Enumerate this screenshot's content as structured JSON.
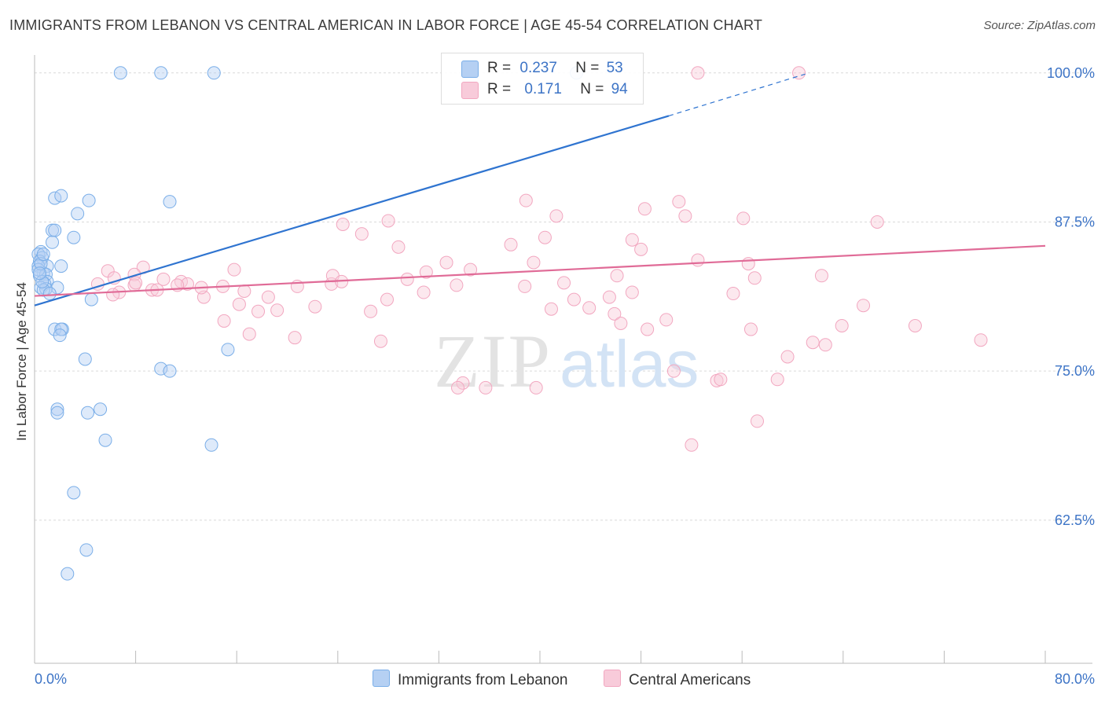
{
  "title": "IMMIGRANTS FROM LEBANON VS CENTRAL AMERICAN IN LABOR FORCE | AGE 45-54 CORRELATION CHART",
  "source": "Source: ZipAtlas.com",
  "watermark": {
    "zip": "ZIP",
    "atlas": "atlas"
  },
  "legend": {
    "series1": {
      "r_label": "R =",
      "r_value": "0.237",
      "n_label": "N =",
      "n_value": "53"
    },
    "series2": {
      "r_label": "R =",
      "r_value": "0.171",
      "n_label": "N =",
      "n_value": "94"
    }
  },
  "chart_data": {
    "type": "scatter",
    "title": "IMMIGRANTS FROM LEBANON VS CENTRAL AMERICAN IN LABOR FORCE | AGE 45-54 CORRELATION CHART",
    "xlabel": "",
    "ylabel": "In Labor Force | Age 45-54",
    "xlim": [
      0,
      80
    ],
    "ylim": [
      50.5,
      101.5
    ],
    "x_tick_labels": [
      "0.0%",
      "80.0%"
    ],
    "y_ticks": [
      62.5,
      75.0,
      87.5,
      100.0
    ],
    "y_tick_labels": [
      "62.5%",
      "75.0%",
      "87.5%",
      "100.0%"
    ],
    "grid": true,
    "legend_position": "top-center",
    "colors": {
      "blue": "#7aaee8",
      "blue_line": "#2f74d0",
      "pink": "#f2a7c0",
      "pink_line": "#e06b97",
      "tick_text": "#3d74c6"
    },
    "series": [
      {
        "name": "Immigrants from Lebanon",
        "color": "#7aaee8",
        "x": [
          6.8,
          10.0,
          14.2,
          42.9,
          1.6,
          2.1,
          4.3,
          10.7,
          3.4,
          1.4,
          1.6,
          3.1,
          1.4,
          0.5,
          0.3,
          0.6,
          0.4,
          2.1,
          1.0,
          0.3,
          0.7,
          0.4,
          0.9,
          1.0,
          0.8,
          0.5,
          1.8,
          0.9,
          0.7,
          4.5,
          1.6,
          2.2,
          2.1,
          2.0,
          4.0,
          15.3,
          10.0,
          10.7,
          1.8,
          1.8,
          4.2,
          5.2,
          5.6,
          14.0,
          3.1,
          4.1,
          2.6,
          0.6,
          0.3,
          0.5,
          1.2,
          0.7,
          0.4
        ],
        "y": [
          100.0,
          100.0,
          100.0,
          100.0,
          89.5,
          89.7,
          89.3,
          89.2,
          88.2,
          86.8,
          86.8,
          86.2,
          85.8,
          85.0,
          84.8,
          84.5,
          84.2,
          83.8,
          83.8,
          83.8,
          83.2,
          83.0,
          83.1,
          82.5,
          82.3,
          82.0,
          82.0,
          81.9,
          81.8,
          81.0,
          78.5,
          78.5,
          78.5,
          78.0,
          76.0,
          76.8,
          75.2,
          75.0,
          71.8,
          71.5,
          71.5,
          71.8,
          69.2,
          68.8,
          64.8,
          60.0,
          58.0,
          82.5,
          83.5,
          84.0,
          81.5,
          84.8,
          83.2
        ]
      },
      {
        "name": "Central Americans",
        "color": "#f2a7c0",
        "x": [
          52.5,
          60.5,
          38.9,
          51.0,
          48.3,
          41.3,
          51.5,
          56.1,
          66.7,
          28.0,
          24.4,
          25.9,
          40.4,
          47.3,
          37.7,
          28.8,
          39.5,
          48.0,
          52.5,
          56.5,
          57.0,
          34.5,
          46.1,
          31.0,
          29.5,
          15.8,
          11.6,
          12.1,
          8.6,
          5.8,
          7.9,
          10.2,
          5.0,
          6.3,
          23.5,
          18.5,
          27.9,
          30.8,
          42.7,
          45.9,
          46.4,
          45.5,
          55.3,
          65.6,
          63.9,
          48.5,
          50.6,
          54.0,
          54.3,
          59.6,
          62.6,
          23.6,
          14.9,
          24.3,
          20.8,
          33.4,
          41.9,
          32.6,
          22.2,
          26.6,
          17.0,
          15.0,
          6.7,
          6.2,
          13.4,
          13.2,
          9.3,
          9.7,
          7.9,
          8.0,
          11.3,
          16.2,
          19.2,
          16.6,
          17.7,
          20.6,
          27.4,
          33.9,
          39.7,
          35.7,
          33.5,
          52.0,
          57.2,
          58.8,
          61.6,
          74.9,
          62.3,
          50.0,
          40.9,
          69.7,
          56.7,
          43.9,
          47.3,
          38.8
        ],
        "y": [
          100.0,
          100.0,
          89.3,
          89.2,
          88.6,
          88.0,
          88.0,
          87.8,
          87.5,
          87.6,
          87.3,
          86.5,
          86.2,
          86.0,
          85.6,
          85.4,
          84.1,
          85.2,
          84.3,
          84.0,
          82.8,
          83.5,
          83.0,
          83.3,
          82.7,
          83.5,
          82.5,
          82.3,
          83.7,
          83.4,
          83.1,
          82.7,
          82.3,
          82.8,
          82.3,
          81.2,
          81.0,
          81.6,
          81.0,
          79.8,
          79.0,
          81.2,
          81.5,
          80.5,
          78.8,
          78.5,
          75.0,
          74.2,
          74.3,
          76.2,
          77.2,
          83.0,
          82.1,
          82.5,
          82.1,
          82.2,
          82.4,
          84.1,
          80.4,
          80.0,
          78.1,
          79.2,
          81.6,
          81.4,
          81.2,
          82.0,
          81.8,
          81.8,
          82.2,
          82.4,
          82.2,
          80.6,
          80.1,
          81.7,
          80.0,
          77.8,
          77.5,
          74.0,
          73.6,
          73.6,
          73.6,
          68.8,
          70.8,
          74.3,
          77.4,
          77.6,
          83.0,
          79.3,
          80.2,
          78.8,
          78.5,
          80.3,
          81.6,
          82.1
        ]
      }
    ],
    "trend_lines": [
      {
        "series": "Immigrants from Lebanon",
        "x": [
          0,
          50.2
        ],
        "y": [
          80.5,
          96.4
        ],
        "dashed_x": [
          50.2,
          61.0
        ],
        "dashed_y": [
          96.4,
          99.9
        ]
      },
      {
        "series": "Central Americans",
        "x": [
          0,
          80
        ],
        "y": [
          81.3,
          85.5
        ]
      }
    ]
  },
  "bottom_legend": {
    "series1": "Immigrants from Lebanon",
    "series2": "Central Americans"
  }
}
